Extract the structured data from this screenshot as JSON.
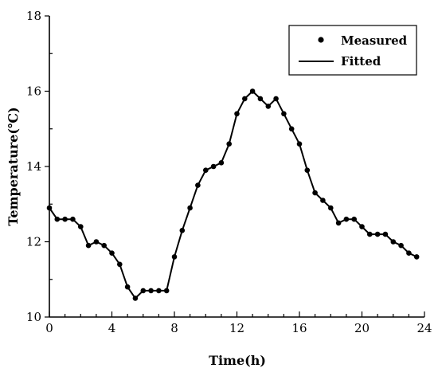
{
  "chart_data": {
    "type": "line",
    "xlabel": "Time(h)",
    "ylabel": "Temperature(℃)",
    "xlim": [
      0,
      24
    ],
    "ylim": [
      10,
      18
    ],
    "x_ticks": [
      0,
      4,
      8,
      12,
      16,
      20,
      24
    ],
    "y_ticks": [
      10,
      12,
      14,
      16,
      18
    ],
    "grid": false,
    "legend_position": "top-right",
    "series": [
      {
        "name": "Measured",
        "style": "markers",
        "x": [
          0,
          0.5,
          1,
          1.5,
          2,
          2.5,
          3,
          3.5,
          4,
          4.5,
          5,
          5.5,
          6,
          6.5,
          7,
          7.5,
          8,
          8.5,
          9,
          9.5,
          10,
          10.5,
          11,
          11.5,
          12,
          12.5,
          13,
          13.5,
          14,
          14.5,
          15,
          15.5,
          16,
          16.5,
          17,
          17.5,
          18,
          18.5,
          19,
          19.5,
          20,
          20.5,
          21,
          21.5,
          22,
          22.5,
          23,
          23.5
        ],
        "y": [
          12.9,
          12.6,
          12.6,
          12.6,
          12.4,
          11.9,
          12.0,
          11.9,
          11.7,
          11.4,
          10.8,
          10.5,
          10.7,
          10.7,
          10.7,
          10.7,
          11.6,
          12.3,
          12.9,
          13.5,
          13.9,
          14.0,
          14.1,
          14.6,
          15.4,
          15.8,
          16.0,
          15.8,
          15.6,
          15.8,
          15.4,
          15.0,
          14.6,
          13.9,
          13.3,
          13.1,
          12.9,
          12.5,
          12.6,
          12.6,
          12.4,
          12.2,
          12.2,
          12.2,
          12.0,
          11.9,
          11.7,
          11.6
        ]
      },
      {
        "name": "Fitted",
        "style": "line",
        "x": [
          0,
          0.5,
          1,
          1.5,
          2,
          2.5,
          3,
          3.5,
          4,
          4.5,
          5,
          5.5,
          6,
          6.5,
          7,
          7.5,
          8,
          8.5,
          9,
          9.5,
          10,
          10.5,
          11,
          11.5,
          12,
          12.5,
          13,
          13.5,
          14,
          14.5,
          15,
          15.5,
          16,
          16.5,
          17,
          17.5,
          18,
          18.5,
          19,
          19.5,
          20,
          20.5,
          21,
          21.5,
          22,
          22.5,
          23,
          23.5
        ],
        "y": [
          12.9,
          12.6,
          12.6,
          12.6,
          12.4,
          11.9,
          12.0,
          11.9,
          11.7,
          11.4,
          10.8,
          10.5,
          10.7,
          10.7,
          10.7,
          10.7,
          11.6,
          12.3,
          12.9,
          13.5,
          13.9,
          14.0,
          14.1,
          14.6,
          15.4,
          15.8,
          16.0,
          15.8,
          15.6,
          15.8,
          15.4,
          15.0,
          14.6,
          13.9,
          13.3,
          13.1,
          12.9,
          12.5,
          12.6,
          12.6,
          12.4,
          12.2,
          12.2,
          12.2,
          12.0,
          11.9,
          11.7,
          11.6
        ]
      }
    ],
    "colors": {
      "line": "#000000",
      "marker": "#000000",
      "axis": "#000000"
    }
  }
}
